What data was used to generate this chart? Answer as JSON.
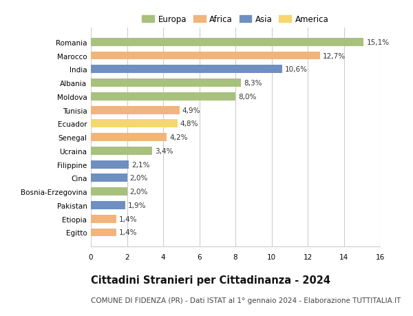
{
  "countries": [
    "Romania",
    "Marocco",
    "India",
    "Albania",
    "Moldova",
    "Tunisia",
    "Ecuador",
    "Senegal",
    "Ucraina",
    "Filippine",
    "Cina",
    "Bosnia-Erzegovina",
    "Pakistan",
    "Etiopia",
    "Egitto"
  ],
  "values": [
    15.1,
    12.7,
    10.6,
    8.3,
    8.0,
    4.9,
    4.8,
    4.2,
    3.4,
    2.1,
    2.0,
    2.0,
    1.9,
    1.4,
    1.4
  ],
  "labels": [
    "15,1%",
    "12,7%",
    "10,6%",
    "8,3%",
    "8,0%",
    "4,9%",
    "4,8%",
    "4,2%",
    "3,4%",
    "2,1%",
    "2,0%",
    "2,0%",
    "1,9%",
    "1,4%",
    "1,4%"
  ],
  "continents": [
    "Europa",
    "Africa",
    "Asia",
    "Europa",
    "Europa",
    "Africa",
    "America",
    "Africa",
    "Europa",
    "Asia",
    "Asia",
    "Europa",
    "Asia",
    "Africa",
    "Africa"
  ],
  "continent_colors": {
    "Europa": "#a8c17c",
    "Africa": "#f2b47a",
    "Asia": "#6f8fc0",
    "America": "#f5d76e"
  },
  "legend_order": [
    "Europa",
    "Africa",
    "Asia",
    "America"
  ],
  "xlim": [
    0,
    16
  ],
  "xticks": [
    0,
    2,
    4,
    6,
    8,
    10,
    12,
    14,
    16
  ],
  "title": "Cittadini Stranieri per Cittadinanza - 2024",
  "subtitle": "COMUNE DI FIDENZA (PR) - Dati ISTAT al 1° gennaio 2024 - Elaborazione TUTTITALIA.IT",
  "background_color": "#ffffff",
  "bar_height": 0.6,
  "grid_color": "#cccccc",
  "title_fontsize": 10.5,
  "subtitle_fontsize": 7.5,
  "label_fontsize": 7.5,
  "tick_fontsize": 7.5,
  "legend_fontsize": 8.5
}
